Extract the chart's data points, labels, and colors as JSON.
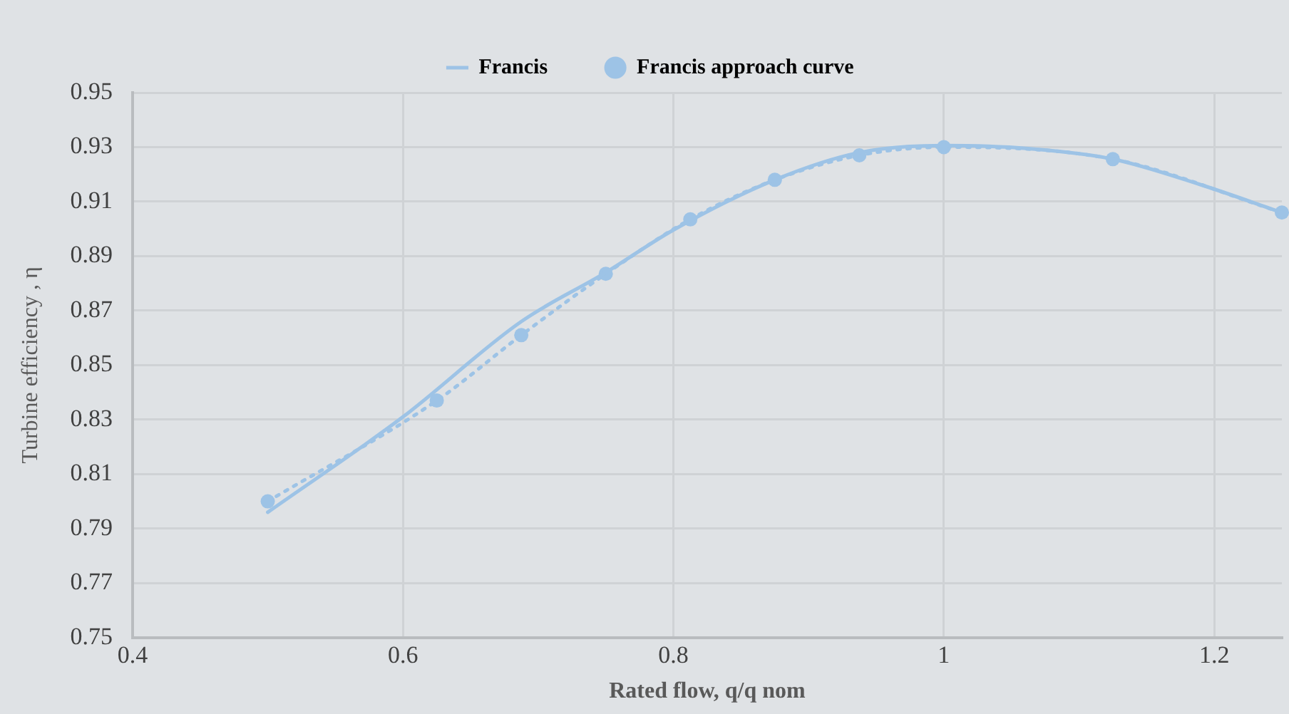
{
  "chart_data": {
    "type": "line",
    "xlabel": "Rated flow, q/q nom",
    "ylabel": "Turbine efficiency , η",
    "xlim": [
      0.4,
      1.25
    ],
    "xticks": [
      0.4,
      0.6,
      0.8,
      1,
      1.2
    ],
    "ylim": [
      0.75,
      0.95
    ],
    "yticks": [
      0.75,
      0.77,
      0.79,
      0.81,
      0.83,
      0.85,
      0.87,
      0.89,
      0.91,
      0.93,
      0.95
    ],
    "grid": true,
    "legend": "top",
    "series": [
      {
        "name": "Francis",
        "color": "#9dc3e6",
        "marker": "none",
        "line_style": "solid",
        "x": [
          0.5,
          0.6,
          0.6875,
          0.75,
          0.8,
          0.875,
          0.9375,
          1,
          1.0625,
          1.125,
          1.19,
          1.25
        ],
        "values": [
          0.796,
          0.831,
          0.866,
          0.884,
          0.8996,
          0.918,
          0.928,
          0.9306,
          0.9295,
          0.9256,
          0.9162,
          0.906
        ]
      },
      {
        "name": "Francis approach curve",
        "color": "#9dc3e6",
        "marker": "circle",
        "line_style": "dotted",
        "x": [
          0.5,
          0.625,
          0.6875,
          0.75,
          0.8125,
          0.875,
          0.9375,
          1,
          1.125,
          1.25
        ],
        "values": [
          0.8,
          0.837,
          0.861,
          0.8835,
          0.9035,
          0.918,
          0.927,
          0.93,
          0.9256,
          0.906
        ]
      }
    ]
  }
}
